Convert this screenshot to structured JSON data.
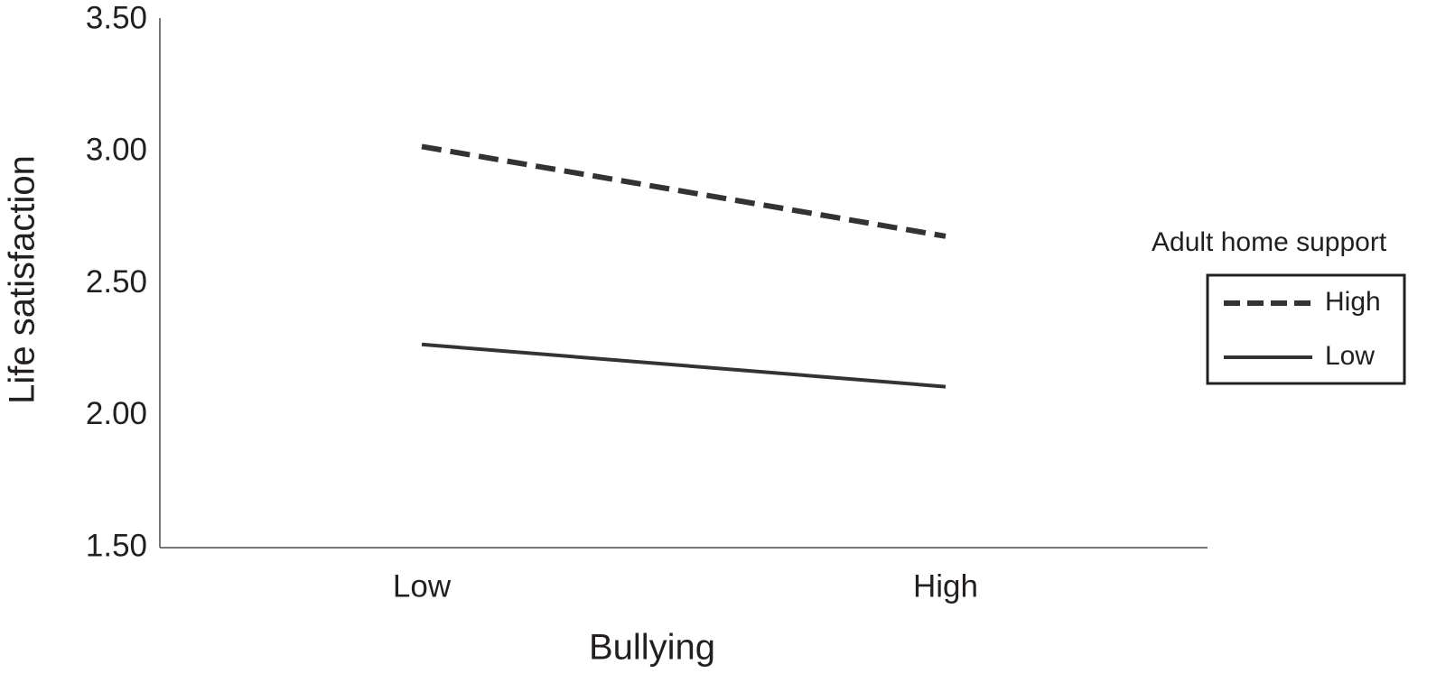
{
  "chart_data": {
    "type": "line",
    "x_label": "Bullying",
    "y_label": "Life satisfaction",
    "categories": [
      "Low",
      "High"
    ],
    "series": [
      {
        "name": "High",
        "color": "#333333",
        "dashed": true,
        "values": [
          3.02,
          2.68
        ]
      },
      {
        "name": "Low",
        "color": "#333333",
        "dashed": false,
        "values": [
          2.27,
          2.11
        ]
      }
    ],
    "ylim": [
      1.5,
      3.5
    ],
    "yticks": [
      {
        "value": 1.5,
        "label": "1.50"
      },
      {
        "value": 2.0,
        "label": "2.00"
      },
      {
        "value": 2.5,
        "label": "2.50"
      },
      {
        "value": 3.0,
        "label": "3.00"
      },
      {
        "value": 3.5,
        "label": "3.50"
      }
    ],
    "grid": false,
    "legend": {
      "title": "Adult home support",
      "position": "right"
    }
  }
}
